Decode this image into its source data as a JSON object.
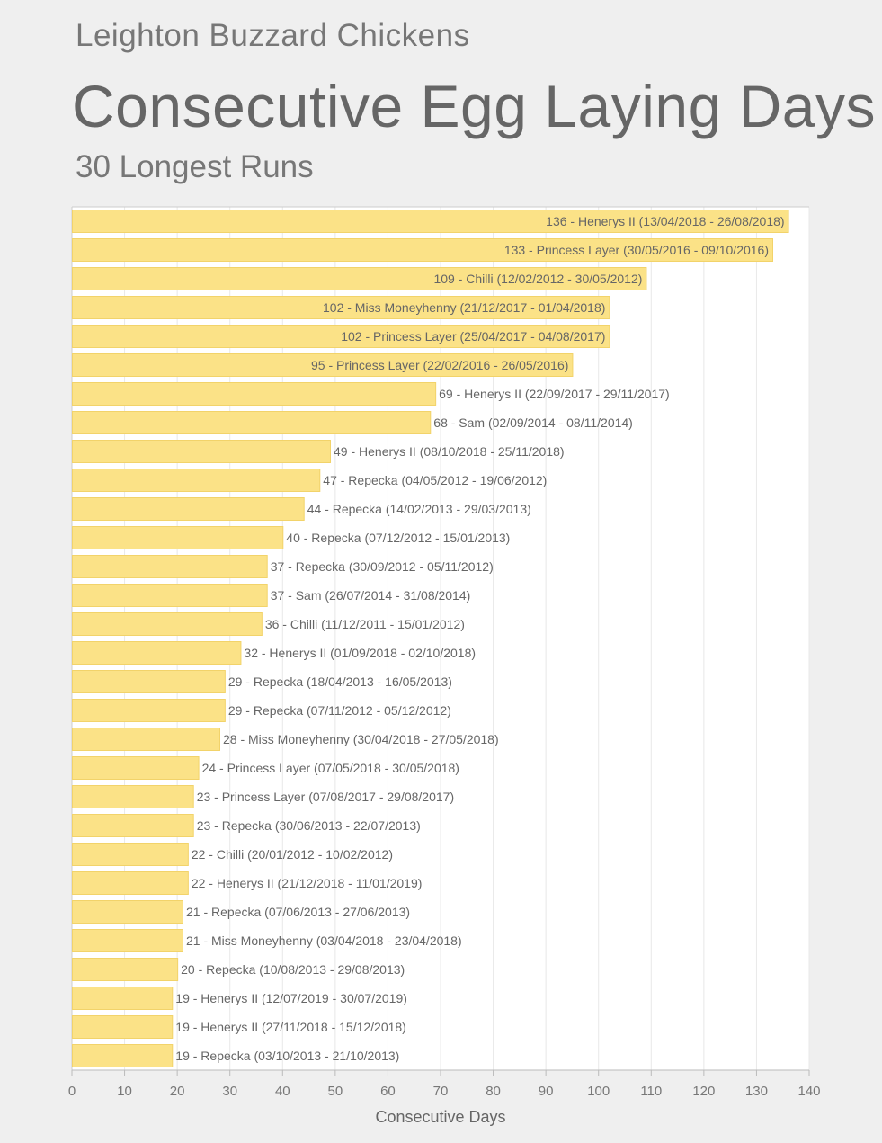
{
  "header": {
    "site": "Leighton Buzzard Chickens",
    "title": "Consecutive Egg Laying Days",
    "subtitle": "30 Longest Runs"
  },
  "chart_data": {
    "type": "bar",
    "orientation": "horizontal",
    "title": "Consecutive Egg Laying Days",
    "subtitle": "30 Longest Runs",
    "xlabel": "Consecutive Days",
    "ylabel": "",
    "xlim": [
      0,
      140
    ],
    "xticks": [
      0,
      10,
      20,
      30,
      40,
      50,
      60,
      70,
      80,
      90,
      100,
      110,
      120,
      130,
      140
    ],
    "grid": true,
    "bar_color": "#fbe287",
    "bar_border": "#f2d36a",
    "values": [
      136,
      133,
      109,
      102,
      102,
      95,
      69,
      68,
      49,
      47,
      44,
      40,
      37,
      37,
      36,
      32,
      29,
      29,
      28,
      24,
      23,
      23,
      22,
      22,
      21,
      21,
      20,
      19,
      19,
      19
    ],
    "labels": [
      "136 - Henerys II (13/04/2018 - 26/08/2018)",
      "133 - Princess Layer (30/05/2016 - 09/10/2016)",
      "109 - Chilli (12/02/2012 - 30/05/2012)",
      "102 - Miss Moneyhenny (21/12/2017 - 01/04/2018)",
      "102 - Princess Layer (25/04/2017 - 04/08/2017)",
      "95 - Princess Layer (22/02/2016 - 26/05/2016)",
      "69 - Henerys II (22/09/2017 - 29/11/2017)",
      "68 - Sam (02/09/2014 - 08/11/2014)",
      "49 - Henerys II (08/10/2018 - 25/11/2018)",
      "47 - Repecka (04/05/2012 - 19/06/2012)",
      "44 - Repecka (14/02/2013 - 29/03/2013)",
      "40 - Repecka (07/12/2012 - 15/01/2013)",
      "37 - Repecka (30/09/2012 - 05/11/2012)",
      "37 - Sam (26/07/2014 - 31/08/2014)",
      "36 - Chilli (11/12/2011 - 15/01/2012)",
      "32 - Henerys II (01/09/2018 - 02/10/2018)",
      "29 - Repecka (18/04/2013 - 16/05/2013)",
      "29 - Repecka (07/11/2012 - 05/12/2012)",
      "28 - Miss Moneyhenny (30/04/2018 - 27/05/2018)",
      "24 - Princess Layer (07/05/2018 - 30/05/2018)",
      "23 - Princess Layer (07/08/2017 - 29/08/2017)",
      "23 - Repecka (30/06/2013 - 22/07/2013)",
      "22 - Chilli (20/01/2012 - 10/02/2012)",
      "22 - Henerys II (21/12/2018 - 11/01/2019)",
      "21 - Repecka (07/06/2013 - 27/06/2013)",
      "21 - Miss Moneyhenny (03/04/2018 - 23/04/2018)",
      "20 - Repecka (10/08/2013 - 29/08/2013)",
      "19 - Henerys II (12/07/2019 - 30/07/2019)",
      "19 - Henerys II (27/11/2018 - 15/12/2018)",
      "19 - Repecka (03/10/2013 - 21/10/2013)"
    ]
  }
}
